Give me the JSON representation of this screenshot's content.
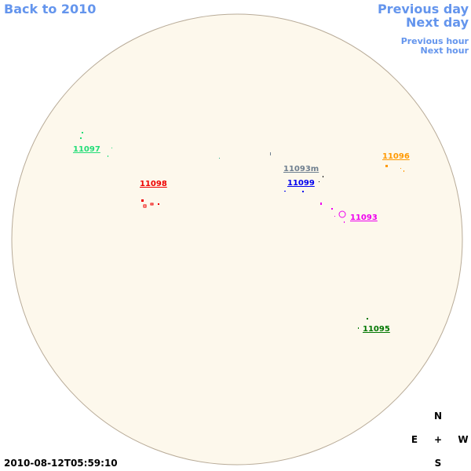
{
  "nav": {
    "back": "Back to 2010",
    "previous_day": "Previous day",
    "next_day": "Next day",
    "previous_hour": "Previous hour",
    "next_hour": "Next hour"
  },
  "regions": [
    {
      "label": "11097",
      "color": "#22dd77"
    },
    {
      "label": "11098",
      "color": "#ee0000"
    },
    {
      "label": "11093m",
      "color": "#708090"
    },
    {
      "label": "11099",
      "color": "#0000ee"
    },
    {
      "label": "11096",
      "color": "#ff9900"
    },
    {
      "label": "11093",
      "color": "#ee00ee"
    },
    {
      "label": "11095",
      "color": "#007700"
    }
  ],
  "compass": {
    "north": "N",
    "east": "E",
    "center": "+",
    "west": "W",
    "south": "S"
  },
  "timestamp": "2010-08-12T05:59:10"
}
